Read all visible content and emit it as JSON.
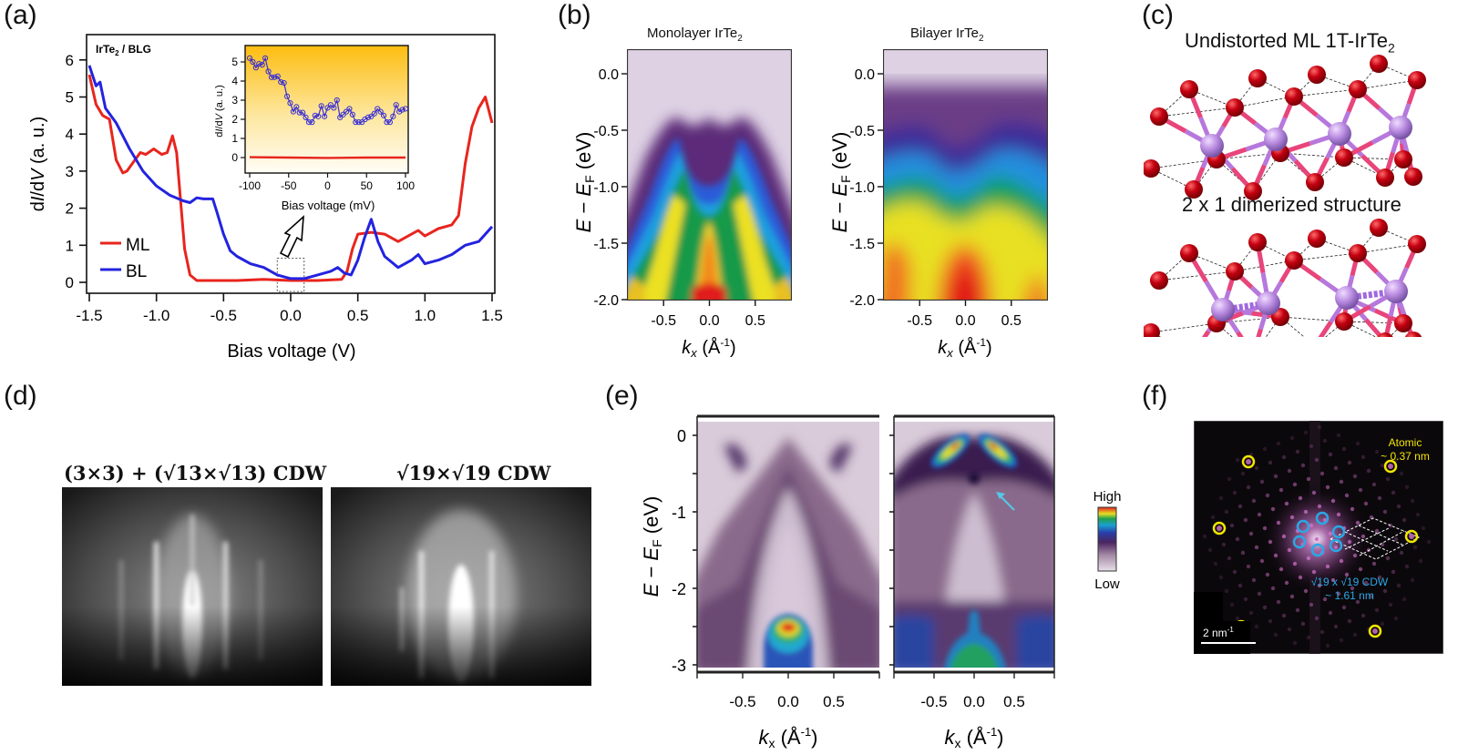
{
  "panels": {
    "a": {
      "label": "(a)"
    },
    "b": {
      "label": "(b)"
    },
    "c": {
      "label": "(c)"
    },
    "d": {
      "label": "(d)"
    },
    "e": {
      "label": "(e)"
    },
    "f": {
      "label": "(f)"
    }
  },
  "chart_data": [
    {
      "id": "a-main",
      "type": "line",
      "title": "",
      "annotation": "IrTe2 / BLG",
      "xlabel": "Bias voltage (V)",
      "ylabel": "dI/dV (a. u.)",
      "xlim": [
        -1.5,
        1.5
      ],
      "ylim": [
        -0.2,
        6.4
      ],
      "xticks": [
        "-1.5",
        "-1.0",
        "-0.5",
        "0.0",
        "0.5",
        "1.0",
        "1.5"
      ],
      "yticks": [
        "0",
        "1",
        "2",
        "3",
        "4",
        "5",
        "6"
      ],
      "legend": {
        "placement": "bottom-left",
        "entries": [
          "ML",
          "BL"
        ]
      },
      "series": [
        {
          "name": "ML",
          "color": "#e8251e",
          "x": [
            -1.5,
            -1.45,
            -1.4,
            -1.35,
            -1.3,
            -1.25,
            -1.22,
            -1.18,
            -1.12,
            -1.08,
            -1.02,
            -0.96,
            -0.92,
            -0.88,
            -0.85,
            -0.82,
            -0.79,
            -0.75,
            -0.7,
            -0.6,
            -0.4,
            -0.2,
            0.0,
            0.2,
            0.38,
            0.42,
            0.46,
            0.5,
            0.6,
            0.7,
            0.8,
            0.9,
            0.95,
            1.0,
            1.1,
            1.2,
            1.25,
            1.3,
            1.35,
            1.4,
            1.45,
            1.5
          ],
          "y": [
            5.6,
            4.8,
            4.5,
            4.4,
            3.3,
            2.95,
            3.0,
            3.2,
            3.5,
            3.45,
            3.6,
            3.45,
            3.5,
            3.95,
            3.5,
            2.2,
            0.9,
            0.2,
            0.05,
            0.05,
            0.05,
            0.08,
            0.05,
            0.05,
            0.08,
            0.3,
            0.9,
            1.3,
            1.35,
            1.3,
            1.1,
            1.3,
            1.4,
            1.25,
            1.45,
            1.55,
            1.8,
            3.2,
            4.2,
            4.7,
            5.0,
            4.3
          ]
        },
        {
          "name": "BL",
          "color": "#2323e0",
          "x": [
            -1.5,
            -1.45,
            -1.42,
            -1.38,
            -1.3,
            -1.2,
            -1.1,
            -1.0,
            -0.9,
            -0.8,
            -0.75,
            -0.7,
            -0.65,
            -0.58,
            -0.55,
            -0.5,
            -0.45,
            -0.4,
            -0.3,
            -0.2,
            -0.1,
            0.0,
            0.1,
            0.2,
            0.3,
            0.35,
            0.4,
            0.45,
            0.5,
            0.55,
            0.6,
            0.65,
            0.7,
            0.8,
            0.9,
            0.95,
            1.0,
            1.1,
            1.2,
            1.3,
            1.4,
            1.5
          ],
          "y": [
            5.85,
            5.3,
            5.4,
            4.7,
            4.3,
            3.6,
            3.0,
            2.6,
            2.35,
            2.2,
            2.15,
            2.28,
            2.25,
            2.25,
            1.9,
            1.3,
            0.85,
            0.7,
            0.5,
            0.4,
            0.2,
            0.1,
            0.1,
            0.2,
            0.3,
            0.4,
            0.25,
            0.2,
            0.6,
            1.2,
            1.7,
            1.1,
            0.7,
            0.4,
            0.6,
            0.75,
            0.5,
            0.6,
            0.75,
            1.0,
            1.1,
            1.5
          ]
        }
      ],
      "highlight_box": {
        "xrange": [
          -0.1,
          0.1
        ],
        "yrange": [
          -0.25,
          0.65
        ]
      }
    },
    {
      "id": "a-inset",
      "type": "line",
      "xlabel": "Bias voltage (mV)",
      "ylabel": "dI/dV (a. u.)",
      "xlim": [
        -100,
        100
      ],
      "ylim": [
        -0.5,
        5.8
      ],
      "xticks": [
        "-100",
        "-50",
        "0",
        "50",
        "100"
      ],
      "yticks": [
        "0",
        "1",
        "2",
        "3",
        "4",
        "5"
      ],
      "series": [
        {
          "name": "BL",
          "color": "#3a2fd4",
          "marker": "circle-open",
          "x": [
            -100,
            -96,
            -92,
            -88,
            -84,
            -80,
            -76,
            -72,
            -68,
            -64,
            -60,
            -56,
            -52,
            -48,
            -44,
            -40,
            -36,
            -32,
            -28,
            -24,
            -20,
            -16,
            -12,
            -8,
            -4,
            0,
            4,
            8,
            12,
            16,
            20,
            24,
            28,
            32,
            36,
            40,
            44,
            48,
            52,
            56,
            60,
            64,
            68,
            72,
            76,
            80,
            84,
            88,
            92,
            96,
            100
          ],
          "y": [
            5.2,
            5.0,
            4.7,
            4.9,
            4.85,
            5.2,
            4.5,
            4.2,
            4.2,
            4.25,
            3.95,
            3.9,
            3.2,
            2.85,
            2.4,
            2.65,
            2.35,
            2.35,
            2.1,
            1.85,
            1.85,
            2.2,
            2.15,
            2.7,
            2.15,
            2.6,
            2.75,
            2.6,
            3.0,
            2.1,
            2.25,
            2.4,
            2.55,
            2.25,
            1.85,
            1.85,
            1.85,
            2.0,
            2.1,
            2.15,
            2.3,
            2.55,
            2.4,
            2.2,
            1.85,
            1.85,
            2.15,
            2.75,
            2.4,
            2.5,
            2.55
          ]
        },
        {
          "name": "ML",
          "color": "#e8251e",
          "x": [
            -100,
            -50,
            0,
            50,
            100
          ],
          "y": [
            0.02,
            0.0,
            -0.02,
            0.0,
            0.0
          ]
        }
      ],
      "background": "gradient orange (top) to white (bottom)"
    },
    {
      "id": "b-ml",
      "type": "heatmap",
      "title": "Monolayer IrTe2",
      "xlabel": "kx (Å-1)",
      "ylabel": "E − EF (eV)",
      "xlim": [
        -0.9,
        0.9
      ],
      "ylim": [
        -2.0,
        0.2
      ],
      "xticks": [
        "-0.5",
        "0.0",
        "0.5"
      ],
      "yticks": [
        "0.0",
        "-0.5",
        "-1.0",
        "-1.5",
        "-2.0"
      ],
      "colormap": "rainbow (lavender low → red high)"
    },
    {
      "id": "b-bl",
      "type": "heatmap",
      "title": "Bilayer IrTe2",
      "xlabel": "kx (Å-1)",
      "ylabel": "E − EF (eV)",
      "xlim": [
        -0.9,
        0.9
      ],
      "ylim": [
        -2.0,
        0.2
      ],
      "xticks": [
        "-0.5",
        "0.0",
        "0.5"
      ],
      "yticks": [
        "0.0",
        "-0.5",
        "-1.0",
        "-1.5",
        "-2.0"
      ],
      "colormap": "rainbow (lavender low → red high)"
    },
    {
      "id": "e-left",
      "type": "heatmap",
      "xlabel": "kx (Å-1)",
      "ylabel": "E − EF (eV)",
      "xlim": [
        -1.0,
        1.0
      ],
      "ylim": [
        -3.0,
        0.2
      ],
      "xticks": [
        "-0.5",
        "0.0",
        "0.5"
      ],
      "yticks": [
        "0",
        "-1",
        "-2",
        "-3"
      ]
    },
    {
      "id": "e-right",
      "type": "heatmap",
      "xlabel": "kx (Å-1)",
      "xlim": [
        -1.0,
        1.0
      ],
      "ylim": [
        -3.0,
        0.2
      ],
      "xticks": [
        "-0.5",
        "0.0",
        "0.5"
      ],
      "colorbar": {
        "high": "High",
        "low": "Low"
      }
    }
  ],
  "texts": {
    "a_annot": "IrTe",
    "a_annot_sub": "2",
    "a_annot_rest": " / BLG",
    "b_title_ml": "Monolayer IrTe",
    "b_title_bl": "Bilayer IrTe",
    "sub2": "2",
    "b_ylabel_main": "E − E",
    "b_ylabel_sub": "F",
    "b_ylabel_unit": " (eV)",
    "b_xlabel_k": "k",
    "b_xlabel_x": "x",
    "b_xlabel_unit": " (Å",
    "b_xlabel_exp": "-1",
    "b_xlabel_close": ")",
    "c_title1": "Undistorted ML 1T-IrTe",
    "c_title2": "2 x 1 dimerized structure",
    "d_title1": "(3×3) + (√13×√13) CDW",
    "d_title2": "√19×√19 CDW",
    "f_atomic1": "Atomic",
    "f_atomic2": "~ 0.37 nm",
    "f_cdw1": "√19 x √19 CDW",
    "f_cdw2": "~ 1.61 nm",
    "f_scale": "2 nm",
    "f_scale_exp": "-1"
  },
  "colors": {
    "ml_red": "#e8251e",
    "bl_blue": "#2323e0",
    "atom_te": "#b0000a",
    "atom_ir": "#b98ce0",
    "bond": "#e0457a",
    "yellow_marker": "#f2e600",
    "cyan_marker": "#2aa8e6"
  }
}
